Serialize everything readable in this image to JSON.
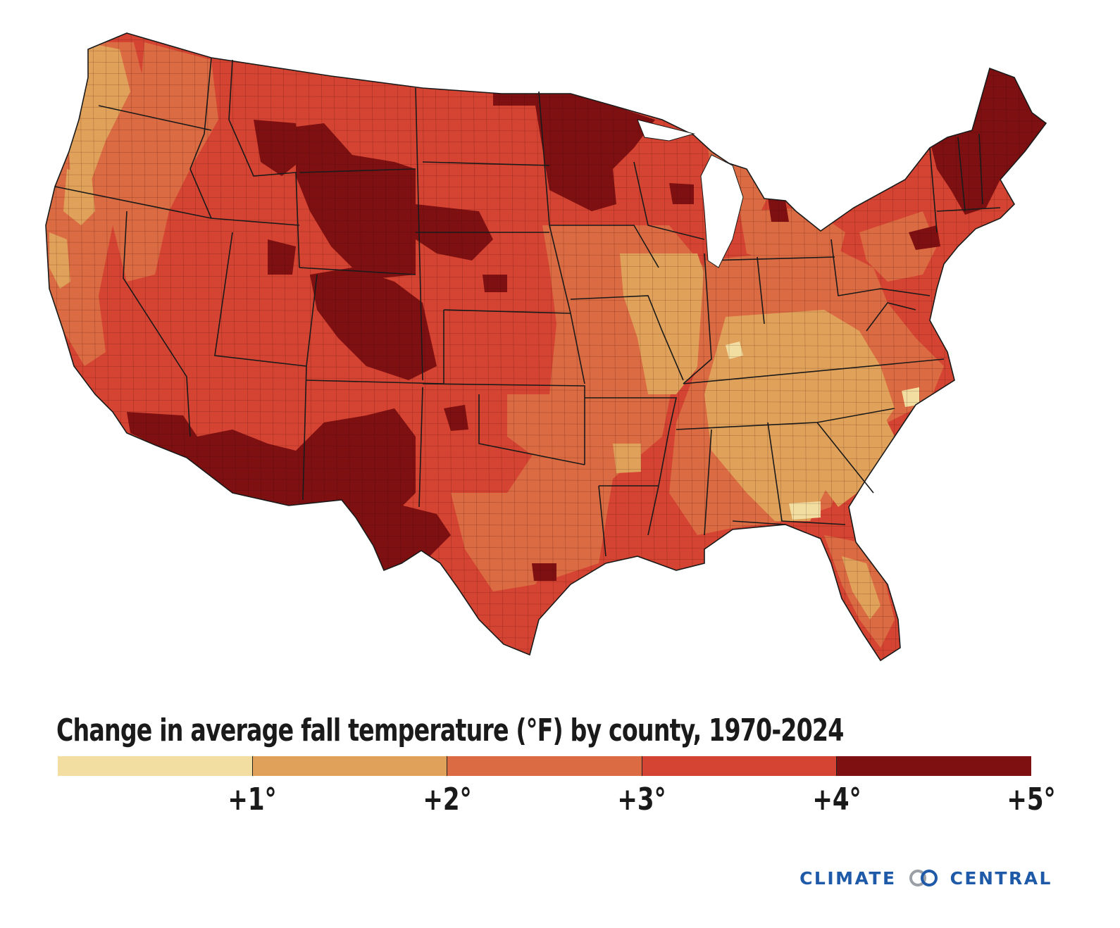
{
  "title": "Change in average fall temperature (°F) by county, 1970-2024",
  "legend": {
    "bins": [
      {
        "range": "< +1°",
        "color": "#f2dea0"
      },
      {
        "range": "+1° to +2°",
        "color": "#e0a25a"
      },
      {
        "range": "+2° to +3°",
        "color": "#db6b42"
      },
      {
        "range": "+3° to +4°",
        "color": "#d54432"
      },
      {
        "range": "+4° to +5°",
        "color": "#7e1012"
      }
    ],
    "tick_labels": [
      "+1°",
      "+2°",
      "+3°",
      "+4°",
      "+5°"
    ]
  },
  "brand": {
    "left_word": "CLIMATE",
    "right_word": "CENTRAL",
    "logo_icon": "interlocking-rings-logo",
    "color": "#1e5aa8"
  },
  "map": {
    "region": "Contiguous United States",
    "unit": "°F",
    "base_color": "#d54432",
    "border_color": "#1a1a1a"
  }
}
